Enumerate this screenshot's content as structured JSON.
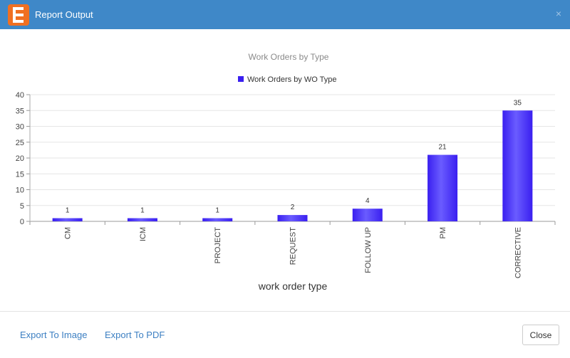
{
  "header": {
    "title": "Report Output",
    "close_icon": "×"
  },
  "footer": {
    "export_image": "Export To Image",
    "export_pdf": "Export To PDF",
    "close": "Close"
  },
  "chart_data": {
    "type": "bar",
    "title": "Work Orders by Type",
    "xlabel": "work order type",
    "ylabel": "",
    "ylim": [
      0,
      40
    ],
    "yticks": [
      0,
      5,
      10,
      15,
      20,
      25,
      30,
      35,
      40
    ],
    "grid": true,
    "legend_placement": "top",
    "categories": [
      "CM",
      "ICM",
      "PROJECT",
      "REQUEST",
      "FOLLOW UP",
      "PM",
      "CORRECTIVE"
    ],
    "series": [
      {
        "name": "Work Orders by WO Type",
        "values": [
          1,
          1,
          1,
          2,
          4,
          21,
          35
        ],
        "color": "#3a1ff0"
      }
    ]
  }
}
